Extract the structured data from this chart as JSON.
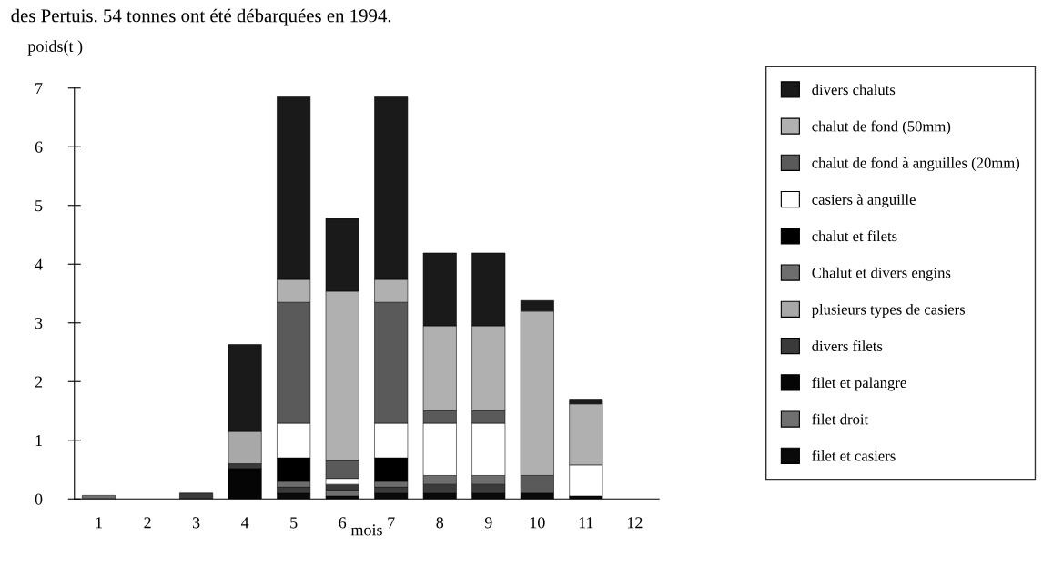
{
  "chart_data": {
    "type": "bar",
    "stacked": true,
    "ylabel": "poids(t )",
    "xlabel": "mois",
    "annotations": [
      "des Pertuis. 54 tonnes ont été débarquées en 1994."
    ],
    "categories": [
      "1",
      "2",
      "3",
      "4",
      "5",
      "6",
      "7",
      "8",
      "9",
      "10",
      "11",
      "12"
    ],
    "ylim": [
      0,
      7
    ],
    "yticks": [
      0,
      1,
      2,
      3,
      4,
      5,
      6,
      7
    ],
    "grid": false,
    "legend": "right",
    "series": [
      {
        "name": "filet et casiers",
        "color": "#0a0a0a",
        "values": [
          0,
          0,
          0,
          0,
          0.1,
          0.05,
          0.1,
          0.1,
          0.1,
          0.1,
          0.05,
          0
        ]
      },
      {
        "name": "filet droit",
        "color": "#707070",
        "values": [
          0.06,
          0,
          0,
          0,
          0,
          0.1,
          0,
          0,
          0,
          0,
          0,
          0
        ]
      },
      {
        "name": "filet et palangre",
        "color": "#050505",
        "values": [
          0,
          0,
          0,
          0.52,
          0,
          0,
          0,
          0,
          0,
          0,
          0,
          0
        ]
      },
      {
        "name": "divers filets",
        "color": "#3a3a3a",
        "values": [
          0,
          0,
          0.1,
          0.08,
          0.1,
          0.1,
          0.1,
          0.15,
          0.15,
          0,
          0,
          0
        ]
      },
      {
        "name": "plusieurs types de casiers",
        "color": "#a8a8a8",
        "values": [
          0,
          0,
          0,
          0.55,
          0,
          0,
          0,
          0,
          0,
          0,
          0,
          0
        ]
      },
      {
        "name": "Chalut et divers engins",
        "color": "#6e6e6e",
        "values": [
          0,
          0,
          0,
          0,
          0.1,
          0,
          0.1,
          0.15,
          0.15,
          0,
          0,
          0
        ]
      },
      {
        "name": "chalut et filets",
        "color": "#000000",
        "values": [
          0,
          0,
          0,
          0,
          0.4,
          0,
          0.4,
          0,
          0,
          0,
          0,
          0
        ]
      },
      {
        "name": "casiers à anguille",
        "color": "#ffffff",
        "values": [
          0,
          0,
          0,
          0,
          0.59,
          0.1,
          0.59,
          0.89,
          0.89,
          0,
          0.53,
          0
        ]
      },
      {
        "name": "chalut de fond à anguilles (20mm)",
        "color": "#5a5a5a",
        "values": [
          0,
          0,
          0,
          0,
          2.06,
          0.3,
          2.06,
          0.21,
          0.21,
          0.3,
          0,
          0
        ]
      },
      {
        "name": "chalut de fond (50mm)",
        "color": "#b0b0b0",
        "values": [
          0,
          0,
          0,
          0,
          0.39,
          2.89,
          0.39,
          1.45,
          1.45,
          2.8,
          1.04,
          0
        ]
      },
      {
        "name": "divers chaluts",
        "color": "#1a1a1a",
        "values": [
          0,
          0,
          0,
          1.48,
          3.11,
          1.24,
          3.11,
          1.24,
          1.24,
          0.18,
          0.08,
          0
        ]
      }
    ]
  }
}
